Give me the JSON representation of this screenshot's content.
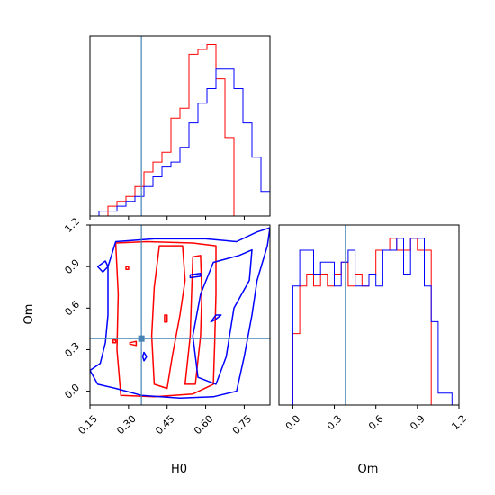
{
  "chart_data": {
    "type": "corner",
    "parameters": [
      "H0",
      "Om"
    ],
    "truths": {
      "H0": 0.35,
      "Om": 0.38
    },
    "colors": {
      "red": "#ff0000",
      "blue": "#0000ff",
      "truth": "#4682b4"
    },
    "panels": {
      "h0_hist": {
        "xlim": [
          0.15,
          0.85
        ],
        "xticks": [
          0.15,
          0.3,
          0.45,
          0.6,
          0.75
        ],
        "series": [
          {
            "color": "red",
            "edges": [
              0.15,
              0.185,
              0.22,
              0.255,
              0.29,
              0.325,
              0.36,
              0.395,
              0.43,
              0.465,
              0.5,
              0.535,
              0.57,
              0.605,
              0.64,
              0.675,
              0.71,
              0.745,
              0.78,
              0.815,
              0.85
            ],
            "counts": [
              0,
              0,
              2,
              3,
              4,
              6,
              9,
              11,
              13,
              20,
              22,
              33,
              34,
              35,
              28,
              16,
              0,
              0,
              0,
              0,
              0
            ]
          },
          {
            "color": "blue",
            "edges": [
              0.15,
              0.185,
              0.22,
              0.255,
              0.29,
              0.325,
              0.36,
              0.395,
              0.43,
              0.465,
              0.5,
              0.535,
              0.57,
              0.605,
              0.64,
              0.675,
              0.71,
              0.745,
              0.78,
              0.815,
              0.85
            ],
            "counts": [
              0,
              1,
              1,
              2,
              3,
              4,
              6,
              8,
              10,
              11,
              14,
              19,
              23,
              26,
              30,
              30,
              26,
              19,
              12,
              5,
              1
            ]
          }
        ]
      },
      "om_hist": {
        "xlim": [
          -0.1,
          1.2
        ],
        "xticks": [
          0.0,
          0.3,
          0.6,
          0.9,
          1.2
        ],
        "xtick_labels": [
          "0.0",
          "0.3",
          "0.6",
          "0.9",
          "1.2"
        ],
        "series": [
          {
            "color": "red",
            "edges": [
              0.0,
              0.05,
              0.1,
              0.15,
              0.2,
              0.25,
              0.3,
              0.35,
              0.4,
              0.45,
              0.5,
              0.55,
              0.6,
              0.65,
              0.7,
              0.75,
              0.8,
              0.85,
              0.9,
              0.95,
              1.0,
              1.05
            ],
            "counts": [
              6,
              10,
              11,
              10,
              11,
              10,
              11,
              12,
              10,
              11,
              10,
              11,
              13,
              13,
              14,
              13,
              13,
              14,
              13,
              13,
              0,
              0
            ]
          },
          {
            "color": "blue",
            "edges": [
              -0.05,
              0.0,
              0.05,
              0.1,
              0.15,
              0.2,
              0.25,
              0.3,
              0.35,
              0.4,
              0.45,
              0.5,
              0.55,
              0.6,
              0.65,
              0.7,
              0.75,
              0.8,
              0.85,
              0.9,
              0.95,
              1.0,
              1.05,
              1.1,
              1.15,
              1.2
            ],
            "counts": [
              0,
              10,
              13,
              13,
              11,
              12,
              12,
              10,
              12,
              13,
              10,
              10,
              11,
              10,
              13,
              13,
              14,
              11,
              14,
              14,
              10,
              7,
              1,
              1,
              0
            ]
          }
        ]
      },
      "scatter": {
        "xlim": [
          0.15,
          0.85
        ],
        "ylim": [
          -0.1,
          1.2
        ],
        "xticks": [
          0.15,
          0.3,
          0.45,
          0.6,
          0.75
        ],
        "yticks": [
          0.0,
          0.3,
          0.6,
          0.9,
          1.2
        ],
        "ytick_labels": [
          "0.0",
          "0.3",
          "0.6",
          "0.9",
          "1.2"
        ],
        "contours": [
          {
            "color": "red",
            "points": [
              [
                0.25,
                1.07
              ],
              [
                0.37,
                1.08
              ],
              [
                0.55,
                1.07
              ],
              [
                0.64,
                1.05
              ],
              [
                0.64,
                0.7
              ],
              [
                0.635,
                0.35
              ],
              [
                0.63,
                0.05
              ],
              [
                0.55,
                -0.02
              ],
              [
                0.4,
                -0.04
              ],
              [
                0.27,
                -0.03
              ],
              [
                0.255,
                0.3
              ],
              [
                0.26,
                0.7
              ],
              [
                0.25,
                1.07
              ]
            ]
          },
          {
            "color": "red",
            "points": [
              [
                0.42,
                1.05
              ],
              [
                0.51,
                1.05
              ],
              [
                0.52,
                0.8
              ],
              [
                0.5,
                0.55
              ],
              [
                0.47,
                0.25
              ],
              [
                0.45,
                0.02
              ],
              [
                0.4,
                0.05
              ],
              [
                0.39,
                0.4
              ],
              [
                0.4,
                0.75
              ],
              [
                0.42,
                1.05
              ]
            ]
          },
          {
            "color": "red",
            "points": [
              [
                0.55,
                0.97
              ],
              [
                0.58,
                0.98
              ],
              [
                0.585,
                0.7
              ],
              [
                0.58,
                0.4
              ],
              [
                0.56,
                0.05
              ],
              [
                0.52,
                0.05
              ],
              [
                0.54,
                0.4
              ],
              [
                0.545,
                0.7
              ],
              [
                0.55,
                0.97
              ]
            ]
          },
          {
            "color": "red",
            "points": [
              [
                0.305,
                0.34
              ],
              [
                0.33,
                0.33
              ],
              [
                0.33,
                0.36
              ],
              [
                0.305,
                0.35
              ],
              [
                0.305,
                0.34
              ]
            ]
          },
          {
            "color": "red",
            "points": [
              [
                0.24,
                0.35
              ],
              [
                0.25,
                0.35
              ],
              [
                0.25,
                0.37
              ],
              [
                0.24,
                0.37
              ],
              [
                0.24,
                0.35
              ]
            ]
          },
          {
            "color": "red",
            "points": [
              [
                0.44,
                0.5
              ],
              [
                0.45,
                0.5
              ],
              [
                0.45,
                0.55
              ],
              [
                0.44,
                0.55
              ],
              [
                0.44,
                0.5
              ]
            ]
          },
          {
            "color": "red",
            "points": [
              [
                0.29,
                0.88
              ],
              [
                0.3,
                0.88
              ],
              [
                0.3,
                0.9
              ],
              [
                0.29,
                0.9
              ],
              [
                0.29,
                0.88
              ]
            ]
          },
          {
            "color": "blue",
            "points": [
              [
                0.15,
                0.15
              ],
              [
                0.18,
                0.05
              ],
              [
                0.25,
                0.02
              ],
              [
                0.35,
                -0.03
              ],
              [
                0.5,
                -0.05
              ],
              [
                0.63,
                -0.04
              ],
              [
                0.72,
                0.0
              ],
              [
                0.75,
                0.25
              ],
              [
                0.78,
                0.55
              ],
              [
                0.8,
                0.8
              ],
              [
                0.84,
                1.05
              ],
              [
                0.85,
                1.18
              ],
              [
                0.8,
                1.15
              ],
              [
                0.72,
                1.08
              ],
              [
                0.6,
                1.1
              ],
              [
                0.4,
                1.1
              ],
              [
                0.25,
                1.08
              ],
              [
                0.22,
                0.9
              ],
              [
                0.22,
                0.55
              ],
              [
                0.21,
                0.35
              ],
              [
                0.19,
                0.2
              ],
              [
                0.15,
                0.15
              ]
            ]
          },
          {
            "color": "blue",
            "points": [
              [
                0.63,
                0.93
              ],
              [
                0.73,
                0.98
              ],
              [
                0.78,
                1.02
              ],
              [
                0.77,
                0.8
              ],
              [
                0.71,
                0.6
              ],
              [
                0.68,
                0.25
              ],
              [
                0.64,
                0.05
              ],
              [
                0.57,
                0.1
              ],
              [
                0.55,
                0.4
              ],
              [
                0.58,
                0.7
              ],
              [
                0.63,
                0.93
              ]
            ]
          },
          {
            "color": "blue",
            "points": [
              [
                0.18,
                0.9
              ],
              [
                0.21,
                0.94
              ],
              [
                0.22,
                0.9
              ],
              [
                0.2,
                0.86
              ],
              [
                0.18,
                0.9
              ]
            ]
          },
          {
            "color": "blue",
            "points": [
              [
                0.54,
                0.82
              ],
              [
                0.58,
                0.83
              ],
              [
                0.58,
                0.85
              ],
              [
                0.54,
                0.84
              ],
              [
                0.54,
                0.82
              ]
            ]
          },
          {
            "color": "blue",
            "points": [
              [
                0.62,
                0.5
              ],
              [
                0.64,
                0.52
              ],
              [
                0.66,
                0.55
              ],
              [
                0.64,
                0.55
              ],
              [
                0.62,
                0.5
              ]
            ]
          },
          {
            "color": "blue",
            "points": [
              [
                0.355,
                0.25
              ],
              [
                0.36,
                0.28
              ],
              [
                0.37,
                0.25
              ],
              [
                0.36,
                0.22
              ],
              [
                0.355,
                0.25
              ]
            ]
          }
        ]
      }
    },
    "xlabels": [
      "H0",
      "Om"
    ],
    "ylabel": "Om"
  }
}
